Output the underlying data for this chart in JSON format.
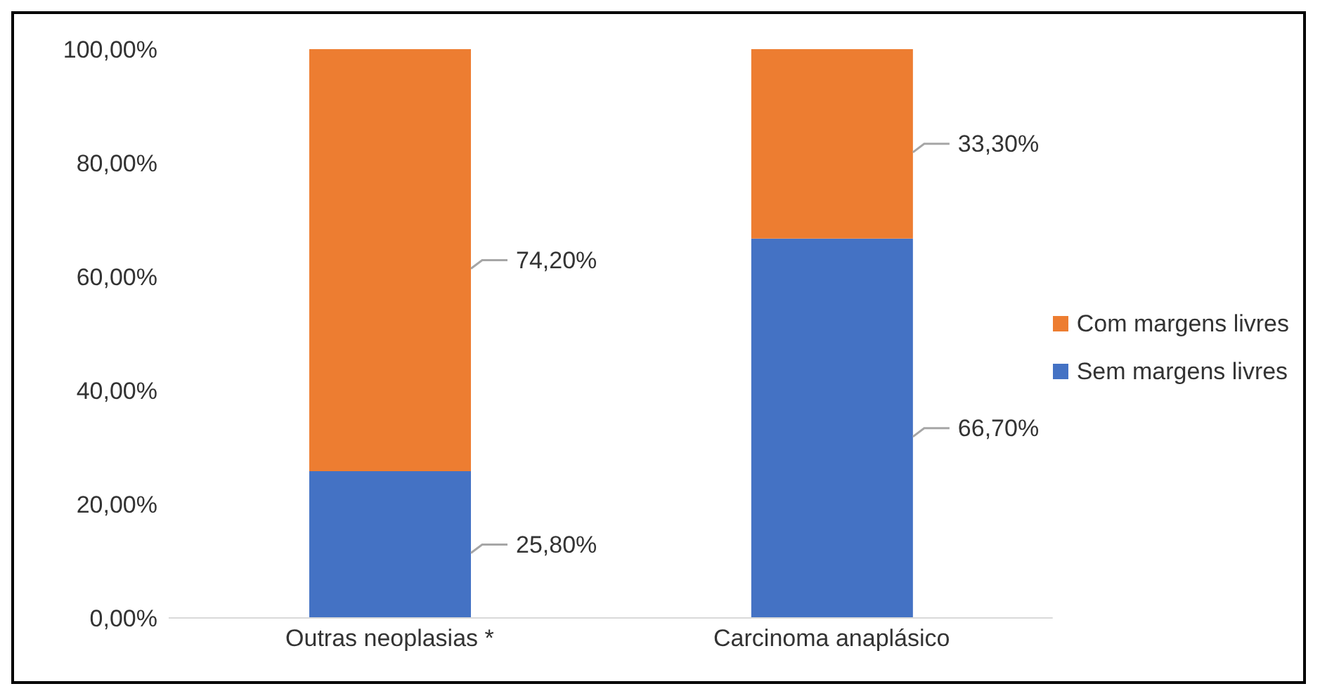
{
  "chart_data": {
    "type": "bar",
    "stacked": true,
    "categories": [
      "Outras neoplasias *",
      "Carcinoma anaplásico"
    ],
    "series": [
      {
        "name": "Sem margens livres",
        "color": "#4472c4",
        "values": [
          25.8,
          66.7
        ],
        "value_labels": [
          "25,80%",
          "66,70%"
        ]
      },
      {
        "name": "Com margens livres",
        "color": "#ed7d31",
        "values": [
          74.2,
          33.3
        ],
        "value_labels": [
          "74,20%",
          "33,30%"
        ]
      }
    ],
    "ylim": [
      0,
      100
    ],
    "yticks": [
      {
        "value": 0,
        "label": "0,00%"
      },
      {
        "value": 20,
        "label": "20,00%"
      },
      {
        "value": 40,
        "label": "40,00%"
      },
      {
        "value": 60,
        "label": "60,00%"
      },
      {
        "value": 80,
        "label": "80,00%"
      },
      {
        "value": 100,
        "label": "100,00%"
      }
    ],
    "grid": false,
    "legend": "right"
  }
}
